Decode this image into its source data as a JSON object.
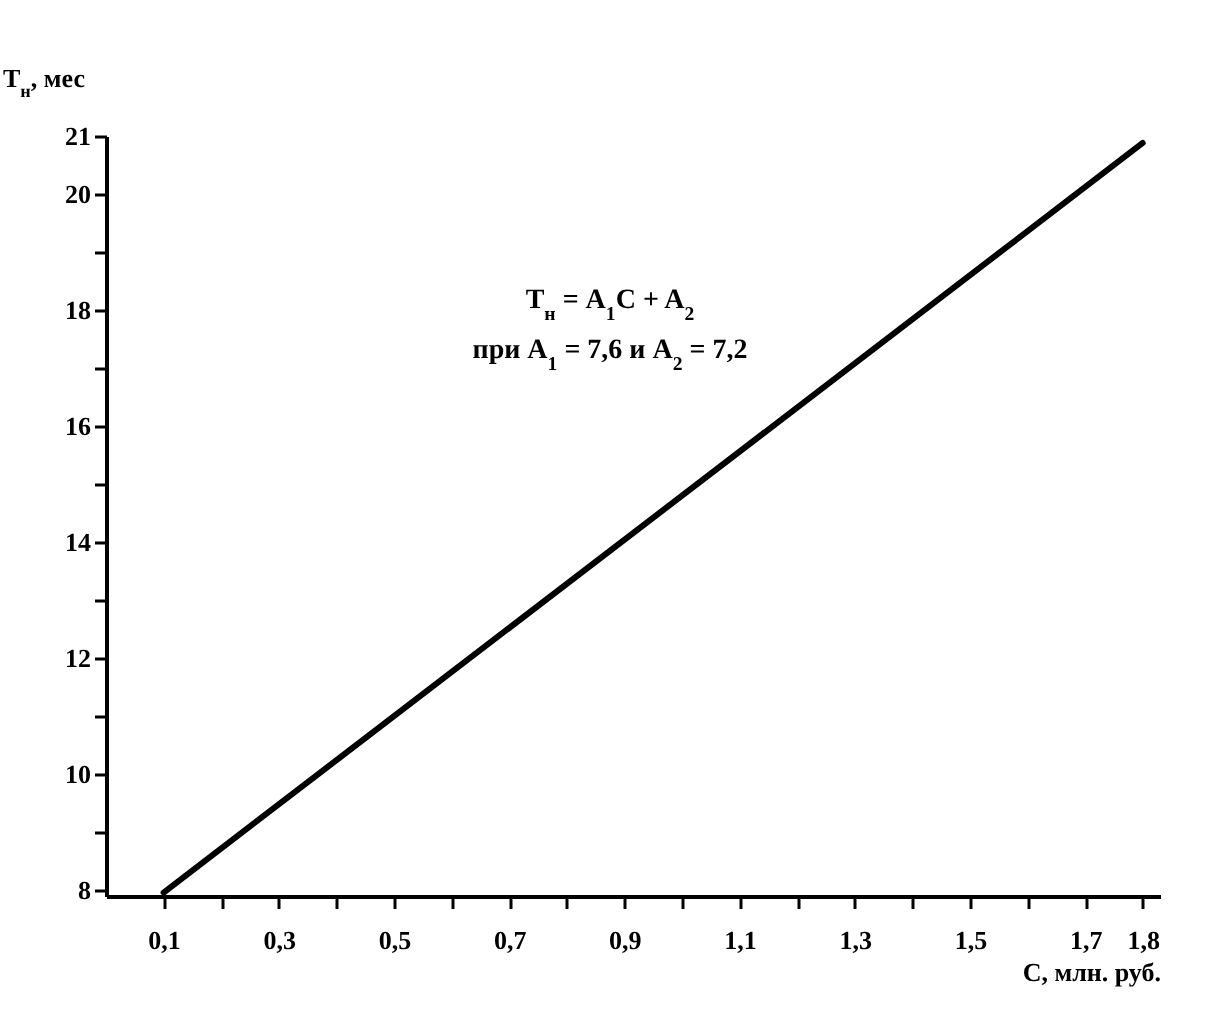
{
  "chart_data": {
    "type": "line",
    "xlabel": "C, млн. руб.",
    "ylabel": "T$_{н}$, мес",
    "annotations": [
      "T$_{н}$ = A$_{1}$C + A$_{2}$",
      "при A$_{1}$ = 7,6 и A$_{2}$ = 7,2"
    ],
    "x": [
      0.1,
      1.8
    ],
    "series": [
      {
        "color": "#000000",
        "values": [
          7.96,
          20.88
        ]
      }
    ],
    "line_style": "solid",
    "xlim": [
      0,
      1.83
    ],
    "ylim": [
      7.9,
      21
    ],
    "xticks": [
      {
        "value": 0.1,
        "label": "0,1"
      },
      {
        "value": 0.2,
        "label": null
      },
      {
        "value": 0.3,
        "label": "0,3"
      },
      {
        "value": 0.4,
        "label": null
      },
      {
        "value": 0.5,
        "label": "0,5"
      },
      {
        "value": 0.6,
        "label": null
      },
      {
        "value": 0.7,
        "label": "0,7"
      },
      {
        "value": 0.8,
        "label": null
      },
      {
        "value": 0.9,
        "label": "0,9"
      },
      {
        "value": 1.0,
        "label": null
      },
      {
        "value": 1.1,
        "label": "1,1"
      },
      {
        "value": 1.2,
        "label": null
      },
      {
        "value": 1.3,
        "label": "1,3"
      },
      {
        "value": 1.4,
        "label": null
      },
      {
        "value": 1.5,
        "label": "1,5"
      },
      {
        "value": 1.6,
        "label": null
      },
      {
        "value": 1.7,
        "label": "1,7"
      },
      {
        "value": 1.8,
        "label": "1,8"
      }
    ],
    "yticks": [
      8,
      {
        "value": 9,
        "label": null
      },
      10,
      {
        "value": 11,
        "label": null
      },
      12,
      {
        "value": 13,
        "label": null
      },
      14,
      {
        "value": 15,
        "label": null
      },
      16,
      {
        "value": 17,
        "label": null
      },
      18,
      {
        "value": 19,
        "label": null
      },
      20,
      21
    ]
  }
}
